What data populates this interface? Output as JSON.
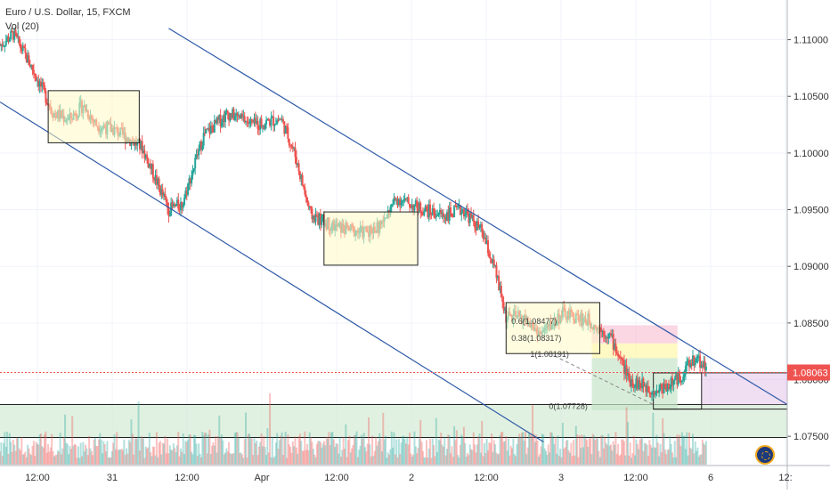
{
  "legend": {
    "symbol_line": "Euro / U.S. Dollar, 15, FXCM",
    "indicator_line": "Vol (20)"
  },
  "colors": {
    "up": "#26a69a",
    "down": "#ef5350",
    "channel": "#2e5aa8",
    "box_fill": "#fff9c4",
    "current_price_bg": "#ef5350"
  },
  "chart_data": {
    "type": "candlestick",
    "symbol": "Euro / U.S. Dollar",
    "interval": "15",
    "source": "FXCM",
    "y_axis": {
      "min": 1.0725,
      "max": 1.1135,
      "ticks": [
        "1.11000",
        "1.10500",
        "1.10000",
        "1.09500",
        "1.09000",
        "1.08500",
        "1.08000",
        "1.07500"
      ]
    },
    "x_axis": {
      "tick_labels": [
        "12:00",
        "31",
        "12:00",
        "Apr",
        "12:00",
        "2",
        "12:00",
        "3",
        "12:00",
        "6",
        "12:"
      ]
    },
    "current_price": "1.08063",
    "price_path": [
      {
        "x": 0.0,
        "price": 1.1095
      },
      {
        "x": 0.5,
        "price": 1.1105
      },
      {
        "x": 1.2,
        "price": 1.1075
      },
      {
        "x": 2.0,
        "price": 1.1035
      },
      {
        "x": 2.6,
        "price": 1.103
      },
      {
        "x": 3.1,
        "price": 1.1042
      },
      {
        "x": 3.6,
        "price": 1.1025
      },
      {
        "x": 4.3,
        "price": 1.102
      },
      {
        "x": 5.3,
        "price": 1.1005
      },
      {
        "x": 6.3,
        "price": 1.095
      },
      {
        "x": 6.8,
        "price": 1.0955
      },
      {
        "x": 7.6,
        "price": 1.1015
      },
      {
        "x": 8.5,
        "price": 1.1035
      },
      {
        "x": 9.5,
        "price": 1.1025
      },
      {
        "x": 10.5,
        "price": 1.103
      },
      {
        "x": 11.0,
        "price": 1.1
      },
      {
        "x": 11.6,
        "price": 1.0945
      },
      {
        "x": 12.5,
        "price": 1.0935
      },
      {
        "x": 13.5,
        "price": 1.093
      },
      {
        "x": 14.2,
        "price": 1.0935
      },
      {
        "x": 14.8,
        "price": 1.096
      },
      {
        "x": 15.8,
        "price": 1.095
      },
      {
        "x": 16.6,
        "price": 1.0945
      },
      {
        "x": 17.3,
        "price": 1.095
      },
      {
        "x": 18.0,
        "price": 1.093
      },
      {
        "x": 18.5,
        "price": 1.0895
      },
      {
        "x": 18.9,
        "price": 1.0855
      },
      {
        "x": 19.5,
        "price": 1.0855
      },
      {
        "x": 20.2,
        "price": 1.084
      },
      {
        "x": 21.0,
        "price": 1.0858
      },
      {
        "x": 22.0,
        "price": 1.0852
      },
      {
        "x": 22.8,
        "price": 1.0838
      },
      {
        "x": 23.5,
        "price": 1.08
      },
      {
        "x": 24.5,
        "price": 1.079
      },
      {
        "x": 25.3,
        "price": 1.08
      },
      {
        "x": 26.0,
        "price": 1.082
      },
      {
        "x": 26.4,
        "price": 1.081
      }
    ],
    "x_range": [
      0,
      29.4
    ],
    "annotations": {
      "channel_upper": [
        {
          "x": 6.3,
          "price": 1.111
        },
        {
          "x": 29.4,
          "price": 1.0778
        }
      ],
      "channel_lower": [
        {
          "x": 0.0,
          "price": 1.1045
        },
        {
          "x": 20.3,
          "price": 1.0745
        }
      ],
      "consolidation_boxes": [
        {
          "x0": 1.8,
          "x1": 5.2,
          "p_top": 1.1055,
          "p_bot": 1.1009
        },
        {
          "x0": 12.1,
          "x1": 15.6,
          "p_top": 1.0948,
          "p_bot": 1.0901
        },
        {
          "x0": 18.9,
          "x1": 22.4,
          "p_top": 1.0868,
          "p_bot": 1.0823
        }
      ],
      "fib_labels": [
        "0.6(1.08477)",
        "0.38(1.08317)",
        "1(1.08191)",
        "0(1.07728)"
      ],
      "horizontal_levels": [
        1.0778,
        1.0749
      ]
    },
    "volume": {
      "max": 100,
      "note": "volume histogram, height shown relative to max"
    },
    "grid": true,
    "legend_position": "top-left"
  }
}
